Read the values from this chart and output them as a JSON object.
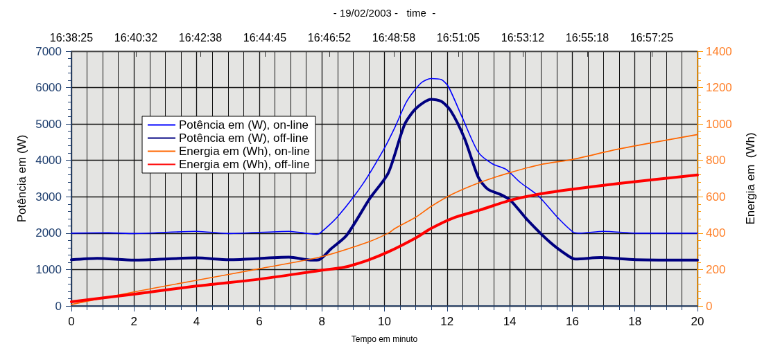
{
  "chart_data": {
    "type": "line",
    "xlabel": "Tempo em minuto",
    "ylabel": "Potência em (W)",
    "y2label": "Energia em  (Wh)",
    "x2label": "- 19/02/2003 -   time  -",
    "xlim": [
      0,
      20
    ],
    "xticks": [
      0,
      2,
      4,
      6,
      8,
      10,
      12,
      14,
      16,
      18,
      20
    ],
    "ylim": [
      0,
      7000
    ],
    "yticks": [
      0,
      1000,
      2000,
      3000,
      4000,
      5000,
      6000,
      7000
    ],
    "y2lim": [
      0,
      1400
    ],
    "y2ticks": [
      0,
      200,
      400,
      600,
      800,
      1000,
      1200,
      1400
    ],
    "x2lim": [
      16.64028,
      16.98194
    ],
    "x2ticks": [
      {
        "value": 16.64028,
        "label": "16:38:25"
      },
      {
        "value": 16.67546,
        "label": "16:40:32"
      },
      {
        "value": 16.71065,
        "label": "16:42:38"
      },
      {
        "value": 16.74583,
        "label": "16:44:45"
      },
      {
        "value": 16.78102,
        "label": "16:46:52"
      },
      {
        "value": 16.8162,
        "label": "16:48:58"
      },
      {
        "value": 16.85139,
        "label": "16:51:05"
      },
      {
        "value": 16.88657,
        "label": "16:53:12"
      },
      {
        "value": 16.92176,
        "label": "16:55:18"
      },
      {
        "value": 16.95694,
        "label": "16:57:25"
      }
    ],
    "grid": true,
    "legend": "left",
    "marker": "none",
    "line_style": "solid",
    "series": [
      {
        "name": "Potência em (W), on-line",
        "color": "#0000ff",
        "x": [
          0,
          1.19,
          2.0,
          3.99,
          5.03,
          6.95,
          7.46,
          7.83,
          7.91,
          8.5,
          9.3,
          9.97,
          10.34,
          10.71,
          11.16,
          11.49,
          11.82,
          12.04,
          12.49,
          13.0,
          13.44,
          13.89,
          14.33,
          14.92,
          15.51,
          16.03,
          16.25,
          17.0,
          18.02,
          20
        ],
        "values": [
          2000,
          2010,
          1990,
          2050,
          1990,
          2050,
          2000,
          1970,
          1980,
          2450,
          3340,
          4290,
          4920,
          5620,
          6120,
          6250,
          6220,
          6030,
          5170,
          4220,
          3910,
          3750,
          3400,
          3020,
          2450,
          2030,
          2000,
          2050,
          2000,
          2000
        ]
      },
      {
        "name": "Potência em (W), off-line",
        "color": "#000080",
        "x": [
          0,
          0.82,
          2.0,
          3.99,
          5.03,
          6.95,
          7.69,
          7.91,
          8.28,
          8.79,
          9.53,
          10.12,
          10.64,
          11.01,
          11.49,
          11.82,
          12.12,
          12.56,
          13.0,
          13.3,
          13.74,
          14.04,
          14.55,
          15.29,
          15.88,
          16.1,
          16.91,
          18.02,
          20
        ],
        "values": [
          1270,
          1310,
          1260,
          1320,
          1270,
          1340,
          1260,
          1270,
          1560,
          1940,
          2950,
          3650,
          4980,
          5430,
          5680,
          5620,
          5360,
          4600,
          3530,
          3210,
          3050,
          2890,
          2380,
          1750,
          1370,
          1290,
          1330,
          1270,
          1260
        ]
      },
      {
        "name": "Energia em (Wh), on-line",
        "color": "#ff6600",
        "axis": "y2",
        "x": [
          0,
          2.0,
          3.99,
          5.99,
          7.91,
          9.46,
          10.12,
          10.34,
          11.01,
          11.49,
          12.19,
          13.07,
          13.96,
          14.99,
          16.03,
          17.5,
          20
        ],
        "values": [
          8,
          77,
          141,
          204,
          267,
          350,
          400,
          426,
          489,
          547,
          616,
          680,
          730,
          777,
          806,
          863,
          942
        ]
      },
      {
        "name": "Energia em (Wh), off-line",
        "color": "#ff0000",
        "axis": "y2",
        "x": [
          0,
          2.0,
          3.99,
          5.99,
          7.91,
          8.72,
          9.46,
          10.12,
          11.01,
          11.49,
          12.19,
          13.07,
          13.96,
          14.99,
          16.03,
          17.5,
          20
        ],
        "values": [
          23,
          65,
          109,
          147,
          194,
          213,
          251,
          297,
          375,
          426,
          483,
          528,
          578,
          616,
          642,
          673,
          720
        ]
      }
    ]
  }
}
